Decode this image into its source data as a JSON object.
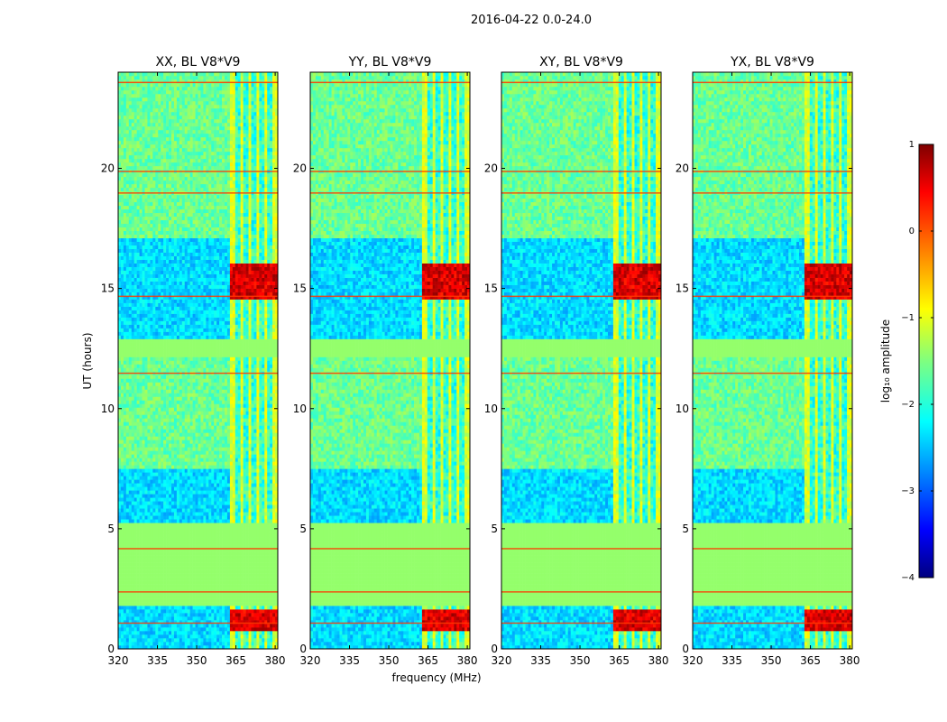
{
  "chart_data": {
    "type": "heatmap",
    "suptitle": "2016-04-22 0.0-24.0",
    "xlabel": "frequency (MHz)",
    "ylabel": "UT (hours)",
    "xlim": [
      320,
      381
    ],
    "ylim": [
      0,
      24
    ],
    "xticks": [
      320,
      335,
      350,
      365,
      380
    ],
    "yticks": [
      0,
      5,
      10,
      15,
      20
    ],
    "panels": [
      {
        "title": "XX, BL V8*V9"
      },
      {
        "title": "YY, BL V8*V9"
      },
      {
        "title": "XY, BL V8*V9"
      },
      {
        "title": "YX, BL V8*V9"
      }
    ],
    "colorbar": {
      "label": "log₁₀ amplitude",
      "range": [
        -4,
        1
      ],
      "ticks": [
        "1",
        "0",
        "−1",
        "−2",
        "−3",
        "−4"
      ],
      "tick_values": [
        1,
        0,
        -1,
        -2,
        -3,
        -4
      ],
      "colormap": "jet"
    },
    "rfi_band_mhz": [
      362.5,
      381
    ],
    "rfi_channels_mhz": [
      366,
      369,
      372,
      375,
      378
    ],
    "flagged_ut_ranges": [
      [
        1.8,
        5.3
      ],
      [
        12.2,
        12.9
      ]
    ],
    "quiet_ut_ranges": [
      [
        0.0,
        1.8
      ],
      [
        5.3,
        7.5
      ],
      [
        12.9,
        17.1
      ]
    ]
  }
}
